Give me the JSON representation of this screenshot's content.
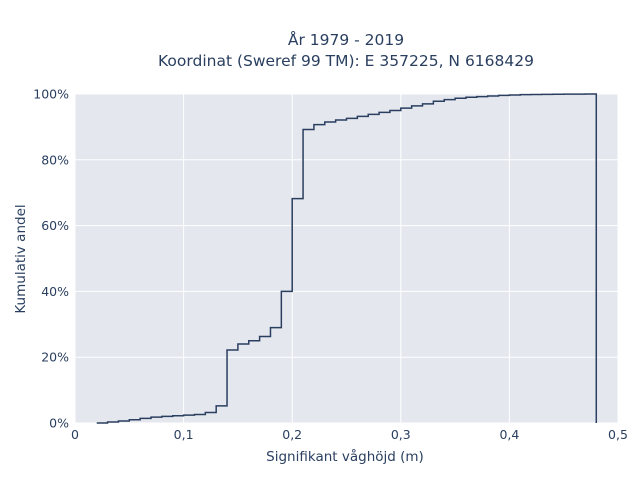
{
  "chart_data": {
    "type": "line",
    "step": true,
    "title_line1": "År 1979 - 2019",
    "title_line2": "Koordinat (Sweref 99 TM): E 357225, N 6168429",
    "xlabel": "Signifikant våghöjd (m)",
    "ylabel": "Kumulativ andel",
    "xlim": [
      0,
      0.5
    ],
    "ylim": [
      0,
      100
    ],
    "grid": true,
    "x_ticks": [
      {
        "value": 0,
        "label": "0"
      },
      {
        "value": 0.1,
        "label": "0,1"
      },
      {
        "value": 0.2,
        "label": "0,2"
      },
      {
        "value": 0.3,
        "label": "0,3"
      },
      {
        "value": 0.4,
        "label": "0,4"
      },
      {
        "value": 0.5,
        "label": "0,5"
      }
    ],
    "y_ticks": [
      {
        "value": 0,
        "label": "0%"
      },
      {
        "value": 20,
        "label": "20%"
      },
      {
        "value": 40,
        "label": "40%"
      },
      {
        "value": 60,
        "label": "60%"
      },
      {
        "value": 80,
        "label": "80%"
      },
      {
        "value": 100,
        "label": "100%"
      }
    ],
    "series": [
      {
        "x": [
          0.02,
          0.03,
          0.04,
          0.05,
          0.06,
          0.07,
          0.08,
          0.09,
          0.1,
          0.11,
          0.12,
          0.13,
          0.14,
          0.15,
          0.16,
          0.17,
          0.18,
          0.19,
          0.2,
          0.21,
          0.22,
          0.23,
          0.24,
          0.25,
          0.26,
          0.27,
          0.28,
          0.29,
          0.3,
          0.31,
          0.32,
          0.33,
          0.34,
          0.35,
          0.36,
          0.37,
          0.38,
          0.39,
          0.4,
          0.41,
          0.42,
          0.43,
          0.44,
          0.45,
          0.46,
          0.47,
          0.48
        ],
        "y": [
          0,
          0.3,
          0.6,
          1.0,
          1.4,
          1.8,
          2.0,
          2.2,
          2.4,
          2.6,
          3.2,
          5.2,
          22.2,
          24.0,
          25.0,
          26.3,
          29.0,
          40.0,
          68.2,
          89.2,
          90.7,
          91.5,
          92.1,
          92.6,
          93.2,
          93.8,
          94.4,
          95.0,
          95.7,
          96.4,
          97.0,
          97.8,
          98.3,
          98.7,
          99.0,
          99.2,
          99.4,
          99.6,
          99.7,
          99.8,
          99.85,
          99.9,
          99.93,
          99.96,
          99.98,
          100,
          0
        ],
        "color": "#2a3f5f"
      }
    ]
  }
}
